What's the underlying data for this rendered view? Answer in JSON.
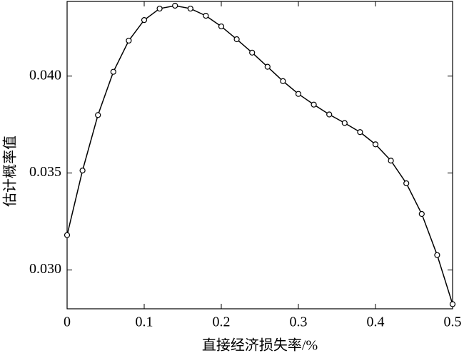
{
  "chart_data": {
    "type": "line",
    "xlabel": "直接经济损失率/%",
    "ylabel": "估计概率值",
    "x": [
      0,
      0.02,
      0.04,
      0.06,
      0.08,
      0.1,
      0.12,
      0.14,
      0.16,
      0.18,
      0.2,
      0.22,
      0.24,
      0.26,
      0.28,
      0.3,
      0.32,
      0.34,
      0.36,
      0.38,
      0.4,
      0.42,
      0.44,
      0.46,
      0.48,
      0.5
    ],
    "values": [
      0.0318,
      0.03513,
      0.03799,
      0.04022,
      0.04183,
      0.04289,
      0.04348,
      0.04363,
      0.04348,
      0.04311,
      0.04256,
      0.0419,
      0.04121,
      0.04048,
      0.03974,
      0.03908,
      0.03853,
      0.03802,
      0.03758,
      0.03711,
      0.03648,
      0.03564,
      0.03447,
      0.03289,
      0.03077,
      0.02824
    ],
    "color": "#000000",
    "marker": "circle",
    "xlim": [
      0,
      0.5
    ],
    "xticks": [
      0,
      0.1,
      0.2,
      0.3,
      0.4,
      0.5
    ],
    "ylim": [
      0.028,
      0.04385
    ],
    "yticks": [
      {
        "value": 0.03,
        "label": "0.030"
      },
      {
        "value": 0.035,
        "label": "0.035"
      },
      {
        "value": 0.04,
        "label": "0.040"
      }
    ],
    "grid": false
  }
}
